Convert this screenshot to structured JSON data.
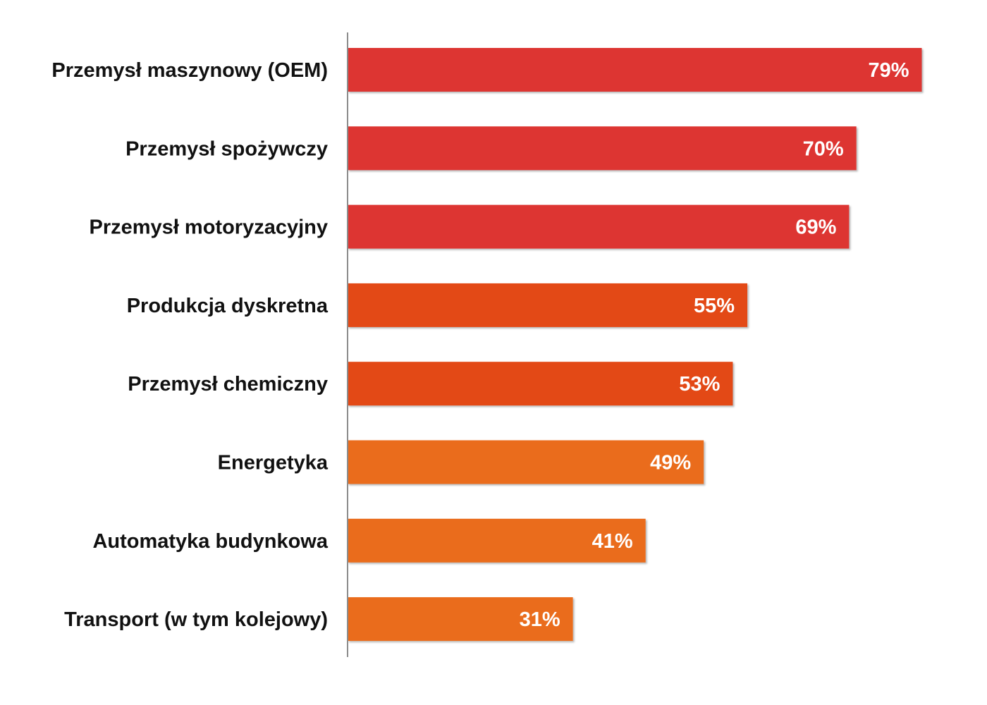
{
  "chart_data": {
    "type": "bar",
    "orientation": "horizontal",
    "title": "",
    "xlabel": "",
    "ylabel": "",
    "grid": false,
    "legend": "none",
    "xlim": [
      0,
      100
    ],
    "categories": [
      "Przemysł maszynowy (OEM)",
      "Przemysł spożywczy",
      "Przemysł motoryzacyjny",
      "Produkcja dyskretna",
      "Przemysł chemiczny",
      "Energetyka",
      "Automatyka budynkowa",
      "Transport (w tym kolejowy)"
    ],
    "values": [
      79,
      70,
      69,
      55,
      53,
      49,
      41,
      31
    ],
    "value_labels": [
      "79%",
      "70%",
      "69%",
      "55%",
      "53%",
      "49%",
      "41%",
      "31%"
    ],
    "colors": [
      "#dd3633",
      "#dd3633",
      "#dd3633",
      "#e34a18",
      "#e34a18",
      "#ea6c1b",
      "#ea6c1b",
      "#ea6c1b"
    ],
    "axis_color": "#8c8c8c"
  }
}
